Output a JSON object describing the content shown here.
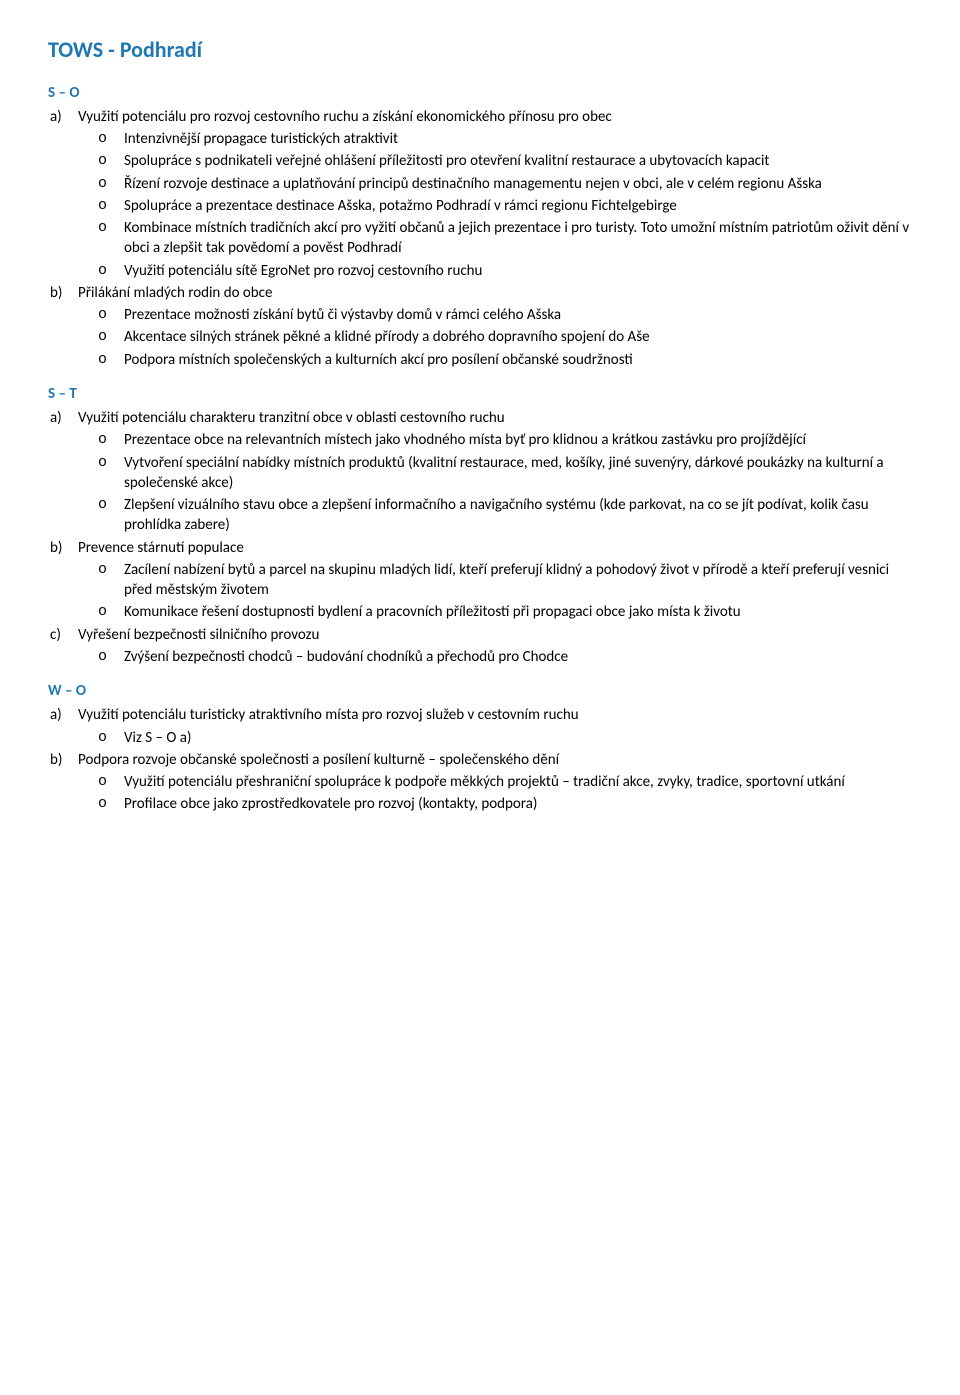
{
  "title": "TOWS - Podhradí",
  "sections": [
    {
      "label": "S – O",
      "items": [
        {
          "marker": "a)",
          "text": "Využití potenciálu pro rozvoj cestovního ruchu a získání ekonomického přínosu pro obec",
          "bullets": [
            "Intenzivnější propagace turistických atraktivit",
            "Spolupráce s podnikateli veřejné ohlášení příležitosti pro otevření kvalitní restaurace a ubytovacích kapacit",
            "Řízení rozvoje destinace a uplatňování principů destinačního managementu nejen v obci, ale v celém regionu Ašska",
            "Spolupráce a prezentace destinace Ašska, potažmo Podhradí v rámci regionu Fichtelgebirge",
            "Kombinace místních tradičních akcí pro vyžití občanů a jejich prezentace i pro turisty. Toto umožní místním patriotům oživit dění v obci a zlepšit tak povědomí a pověst Podhradí",
            "Využití potenciálu sítě EgroNet pro rozvoj cestovního ruchu"
          ]
        },
        {
          "marker": "b)",
          "text": "Přilákání mladých rodin do obce",
          "bullets": [
            "Prezentace možnosti získání bytů či výstavby domů v rámci celého Ašska",
            "Akcentace silných stránek pěkné a klidné přírody a dobrého dopravního spojení do Aše",
            "Podpora místních společenských a kulturních akcí pro posílení občanské soudržnosti"
          ]
        }
      ]
    },
    {
      "label": "S – T",
      "items": [
        {
          "marker": "a)",
          "text": "Využití potenciálu charakteru tranzitní obce v oblasti cestovního ruchu",
          "bullets": [
            "Prezentace obce na relevantních místech jako vhodného místa byť pro klidnou a krátkou zastávku pro projíždějící",
            "Vytvoření speciální nabídky místních produktů (kvalitní restaurace, med, košíky, jiné suvenýry, dárkové poukázky na kulturní a společenské akce)",
            "Zlepšení vizuálního stavu obce a zlepšení informačního a navigačního systému (kde parkovat, na co se jít podívat, kolik času prohlídka zabere)"
          ]
        },
        {
          "marker": "b)",
          "text": "Prevence stárnutí populace",
          "bullets": [
            "Zacílení nabízení bytů a parcel na skupinu mladých lidí, kteří preferují klidný a pohodový život v přírodě a kteří preferují vesnici před městským životem",
            "Komunikace řešení dostupnosti bydlení a pracovních příležitostí při propagaci obce jako místa k životu"
          ]
        },
        {
          "marker": "c)",
          "text": "Vyřešení bezpečnosti silničního provozu",
          "bullets": [
            "Zvýšení bezpečnosti chodců – budování chodníků a přechodů pro Chodce"
          ]
        }
      ]
    },
    {
      "label": "W – O",
      "items": [
        {
          "marker": "a)",
          "text": "Využití potenciálu turisticky atraktivního místa pro rozvoj služeb v cestovním ruchu",
          "bullets": [
            "Viz S – O a)"
          ]
        },
        {
          "marker": "b)",
          "text": "Podpora rozvoje občanské společnosti a posílení kulturně – společenského dění",
          "bullets": [
            "Využití potenciálu přeshraniční spolupráce k podpoře měkkých projektů – tradiční akce, zvyky, tradice, sportovní utkání",
            "Profilace obce jako zprostředkovatele pro rozvoj (kontakty, podpora)"
          ]
        }
      ]
    }
  ]
}
